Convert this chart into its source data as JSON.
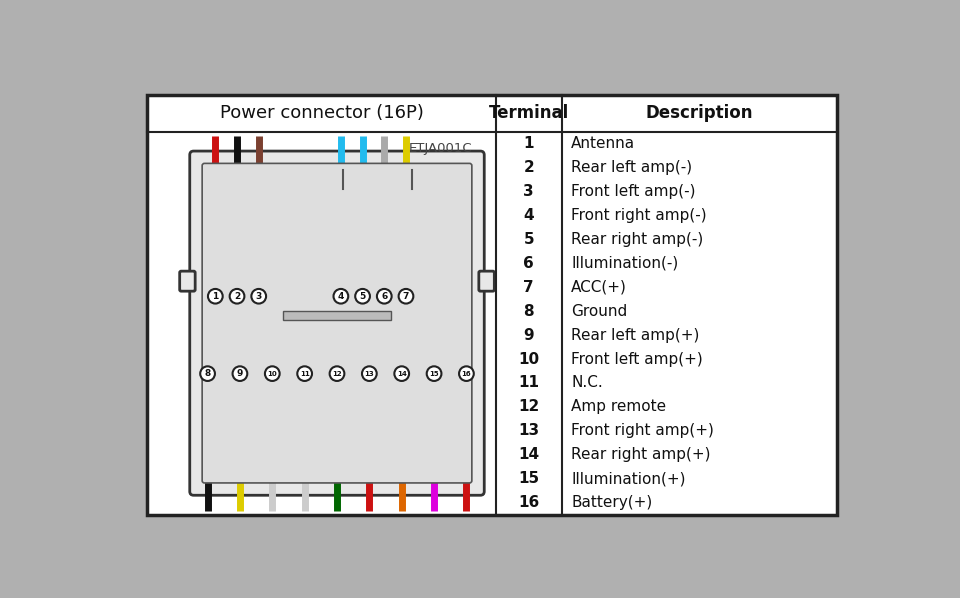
{
  "title": "Power connector (16P)",
  "col2_header": "Terminal",
  "col3_header": "Description",
  "watermark": "ETJA001C",
  "terminals": [
    1,
    2,
    3,
    4,
    5,
    6,
    7,
    8,
    9,
    10,
    11,
    12,
    13,
    14,
    15,
    16
  ],
  "descriptions": [
    "Antenna",
    "Rear left amp(-)",
    "Front left amp(-)",
    "Front right amp(-)",
    "Rear right amp(-)",
    "Illumination(-)",
    "ACC(+)",
    "Ground",
    "Rear left amp(+)",
    "Front left amp(+)",
    "N.C.",
    "Amp remote",
    "Front right amp(+)",
    "Rear right amp(+)",
    "Illumination(+)",
    "Battery(+)"
  ],
  "page_bg": "#b0b0b0",
  "table_bg": "#ffffff",
  "header_bg": "#ffffff",
  "border_color": "#222222",
  "top_row_wire_colors": [
    "#cc1111",
    "#111111",
    "#7b4030",
    "#22bbee",
    "#22bbee",
    "#aaaaaa",
    "#ddcc00"
  ],
  "bottom_row_wire_colors": [
    "#111111",
    "#ddcc00",
    "#cccccc",
    "#cccccc",
    "#006600",
    "#cc1111",
    "#dd6600",
    "#dd00dd",
    "#cc1111"
  ]
}
